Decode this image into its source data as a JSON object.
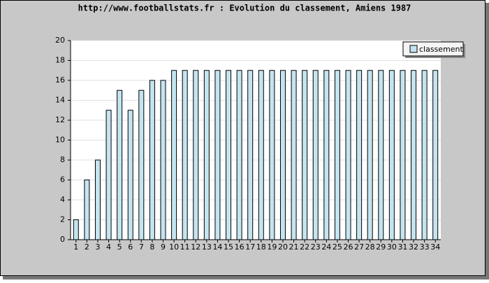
{
  "chart_data": {
    "type": "bar",
    "title": "http://www.footballstats.fr : Evolution du classement, Amiens 1987",
    "categories": [
      "1",
      "2",
      "3",
      "4",
      "5",
      "6",
      "7",
      "8",
      "9",
      "10",
      "11",
      "12",
      "13",
      "14",
      "15",
      "16",
      "17",
      "18",
      "19",
      "20",
      "21",
      "22",
      "23",
      "24",
      "25",
      "26",
      "27",
      "28",
      "29",
      "30",
      "31",
      "32",
      "33",
      "34"
    ],
    "series": [
      {
        "name": "classement",
        "color": "#c4e4f0",
        "values": [
          2,
          6,
          8,
          13,
          15,
          13,
          15,
          16,
          16,
          17,
          17,
          17,
          17,
          17,
          17,
          17,
          17,
          17,
          17,
          17,
          17,
          17,
          17,
          17,
          17,
          17,
          17,
          17,
          17,
          17,
          17,
          17,
          17,
          17
        ]
      }
    ],
    "ylim": [
      0,
      20
    ],
    "yticks": [
      0,
      2,
      4,
      6,
      8,
      10,
      12,
      14,
      16,
      18,
      20
    ],
    "grid": true,
    "legend": "top-right"
  }
}
